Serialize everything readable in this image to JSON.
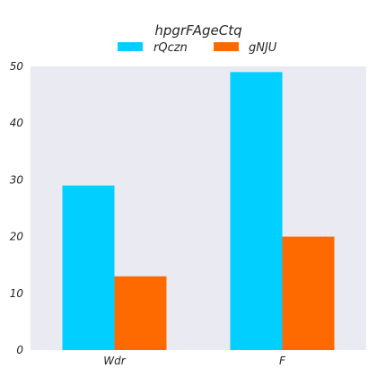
{
  "chart_data": {
    "type": "bar",
    "title": "hpgrFAgeCtq",
    "xlabel": "",
    "ylabel": "",
    "categories": [
      "Wdr",
      "F"
    ],
    "series": [
      {
        "name": "rQczn",
        "values": [
          29,
          49
        ],
        "color": "#00cfff"
      },
      {
        "name": "gNJU",
        "values": [
          13,
          20
        ],
        "color": "#ff6a00"
      }
    ],
    "ylim": [
      0,
      50
    ],
    "yticks": [
      0,
      10,
      20,
      30,
      40,
      50
    ],
    "grid": false,
    "legend_position": "top-center",
    "plot_background": "#eaeaf2"
  }
}
